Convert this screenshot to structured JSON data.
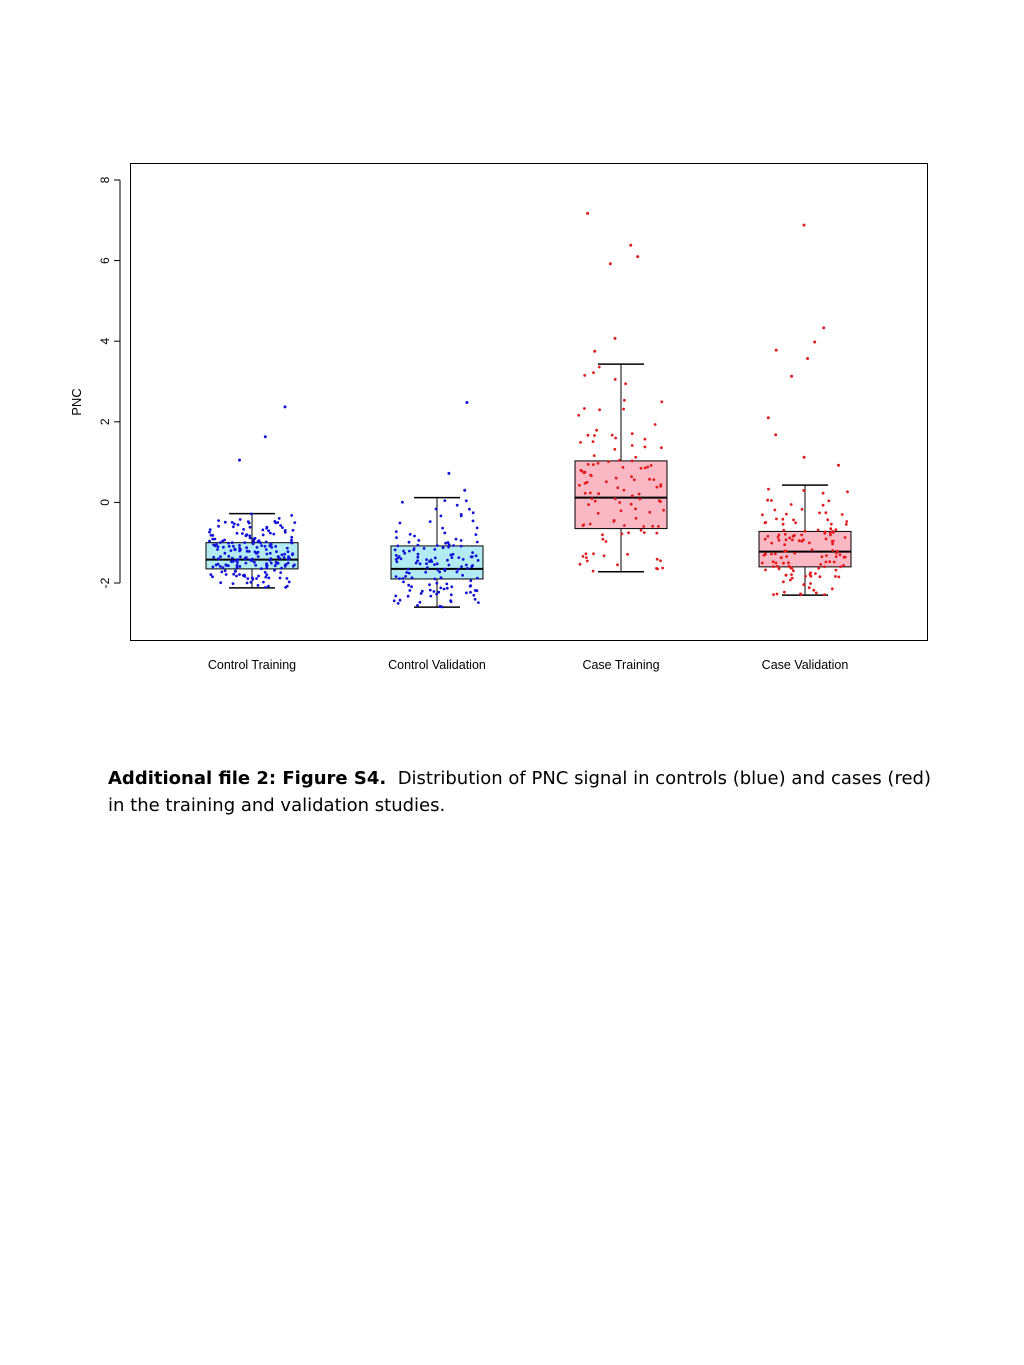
{
  "chart_data": {
    "type": "box",
    "ylabel": "PNC",
    "ylim": [
      -3.4,
      8.4
    ],
    "yticks": [
      -2,
      0,
      2,
      4,
      6,
      8
    ],
    "categories": [
      "Control Training",
      "Control Validation",
      "Case Training",
      "Case Validation"
    ],
    "colors": {
      "control_fill": "#b3ebf5",
      "control_points": "#1010d8",
      "case_fill": "#f9b8c4",
      "case_points": "#e31a1c"
    },
    "boxes": [
      {
        "category": "Control Training",
        "group": "control",
        "whisker_low": -2.12,
        "q1": -1.65,
        "median": -1.42,
        "q3": -1.0,
        "whisker_high": -0.28,
        "n_points": 200,
        "outliers": [
          2.37,
          1.63,
          1.05
        ]
      },
      {
        "category": "Control Validation",
        "group": "control",
        "whisker_low": -2.6,
        "q1": -1.9,
        "median": -1.65,
        "q3": -1.08,
        "whisker_high": 0.12,
        "n_points": 140,
        "outliers": [
          2.48,
          0.72,
          0.3
        ]
      },
      {
        "category": "Case Training",
        "group": "case",
        "whisker_low": -1.72,
        "q1": -0.65,
        "median": 0.12,
        "q3": 1.03,
        "whisker_high": 3.43,
        "n_points": 110,
        "outliers": [
          7.17,
          6.38,
          6.1,
          5.92,
          4.07,
          3.75
        ]
      },
      {
        "category": "Case Validation",
        "group": "case",
        "whisker_low": -2.3,
        "q1": -1.6,
        "median": -1.22,
        "q3": -0.72,
        "whisker_high": 0.43,
        "n_points": 130,
        "outliers": [
          6.88,
          4.33,
          3.98,
          3.78,
          3.57,
          3.13,
          2.1,
          1.68,
          1.12,
          0.92
        ]
      }
    ]
  },
  "caption": {
    "label": "Additional file 2: Figure S4.",
    "text": "Distribution of PNC signal in controls (blue) and cases (red) in the  training and validation studies."
  }
}
